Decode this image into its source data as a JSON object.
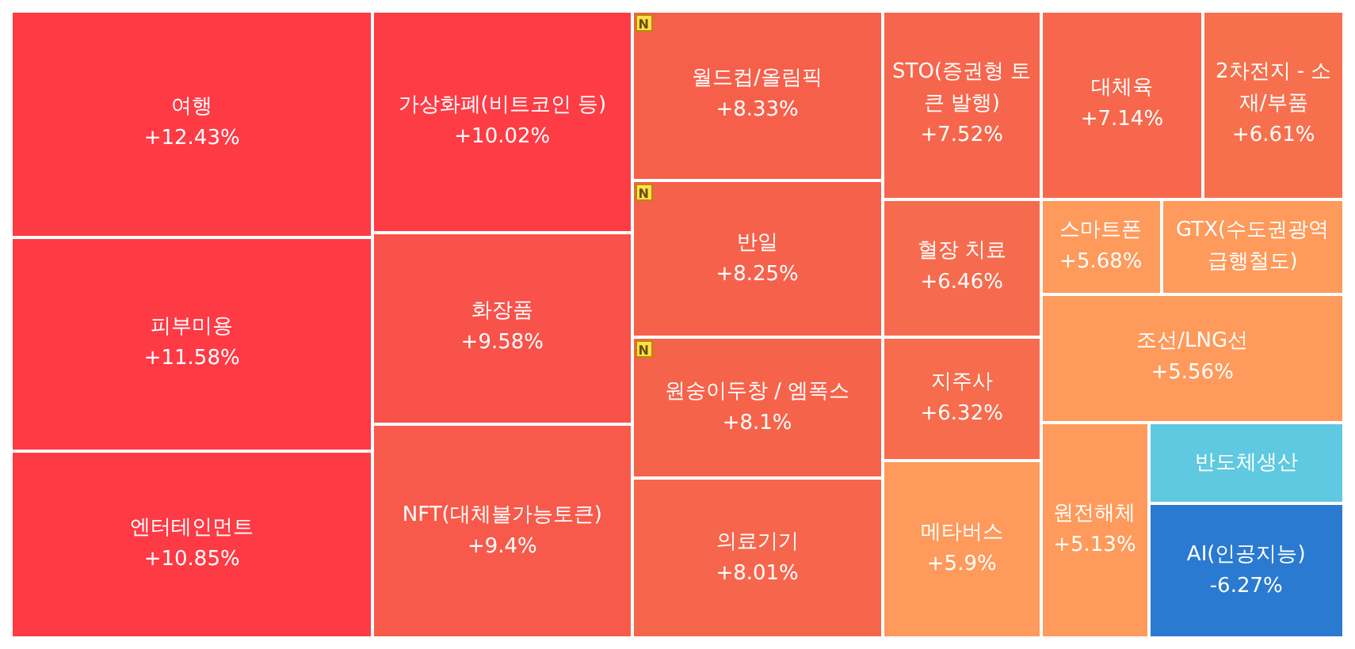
{
  "chart_data": {
    "type": "other",
    "categories": [
      "여행",
      "피부미용",
      "엔터테인먼트",
      "가상화폐(비트코인 등)",
      "화장품",
      "NFT(대체불가능토큰)",
      "월드컵/올림픽",
      "반일",
      "원숭이두창 / 엠폭스",
      "의료기기",
      "STO(증권형 토큰 발행)",
      "혈장 치료",
      "지주사",
      "메타버스",
      "대체육",
      "2차전지 - 소재/부품",
      "스마트폰",
      "GTX(수도권광역급행철도)",
      "조선/LNG선",
      "원전해체",
      "반도체생산",
      "AI(인공지능)"
    ],
    "values": [
      12.43,
      11.58,
      10.85,
      10.02,
      9.58,
      9.4,
      8.33,
      8.25,
      8.1,
      8.01,
      7.52,
      6.46,
      6.32,
      5.9,
      7.14,
      6.61,
      5.68,
      null,
      5.56,
      5.13,
      null,
      -6.27
    ],
    "value_labels": [
      "+12.43%",
      "+11.58%",
      "+10.85%",
      "+10.02%",
      "+9.58%",
      "+9.4%",
      "+8.33%",
      "+8.25%",
      "+8.1%",
      "+8.01%",
      "+7.52%",
      "+6.46%",
      "+6.32%",
      "+5.9%",
      "+7.14%",
      "+6.61%",
      "+5.68%",
      null,
      "+5.56%",
      "+5.13%",
      null,
      "-6.27%"
    ],
    "colors": [
      "#fe3a45",
      "#fe3a45",
      "#fe3a45",
      "#fe3c45",
      "#f8524a",
      "#f75a4b",
      "#f6604b",
      "#f6614b",
      "#f6634b",
      "#f6664c",
      "#f6664c",
      "#f66b4d",
      "#f66c4d",
      "#fe9a5b",
      "#f6674c",
      "#f6704e",
      "#fe9a5b",
      "#fe9a5b",
      "#fe9a5b",
      "#fe9a5b",
      "#5ec9e0",
      "#2a7ad1"
    ],
    "annotations": [
      {
        "text": "N",
        "x": "월드컵/올림픽"
      },
      {
        "text": "N",
        "x": "반일"
      },
      {
        "text": "N",
        "x": "원숭이두창 / 엠폭스"
      }
    ]
  }
}
